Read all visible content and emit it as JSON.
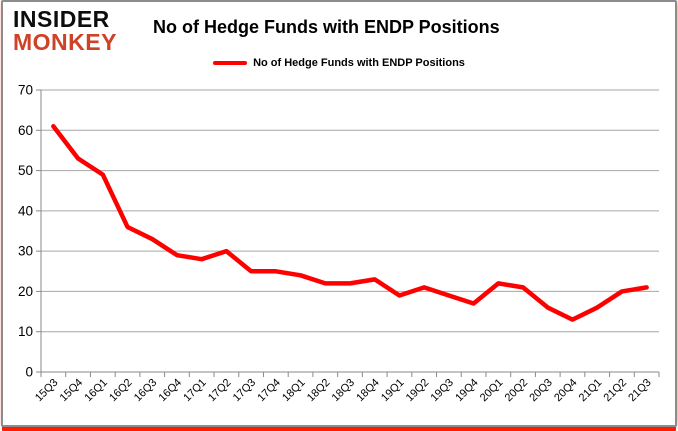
{
  "brand": {
    "line1": "INSIDER",
    "line2": "MONKEY",
    "accent_color": "#ce4227"
  },
  "header": {
    "title": "No of Hedge Funds with ENDP Positions"
  },
  "legend": {
    "label": "No of Hedge Funds with ENDP Positions",
    "swatch_color": "#ff0000"
  },
  "chart_data": {
    "type": "line",
    "title": "No of Hedge Funds with ENDP Positions",
    "xlabel": "",
    "ylabel": "",
    "categories": [
      "15Q3",
      "15Q4",
      "16Q1",
      "16Q2",
      "16Q3",
      "16Q4",
      "17Q1",
      "17Q2",
      "17Q3",
      "17Q4",
      "18Q1",
      "18Q2",
      "18Q3",
      "18Q4",
      "19Q1",
      "19Q2",
      "19Q3",
      "19Q4",
      "20Q1",
      "20Q2",
      "20Q3",
      "20Q4",
      "21Q1",
      "21Q2",
      "21Q3"
    ],
    "series": [
      {
        "name": "No of Hedge Funds with ENDP Positions",
        "color": "#ff0000",
        "values": [
          61,
          53,
          49,
          36,
          33,
          29,
          28,
          30,
          25,
          25,
          24,
          22,
          22,
          23,
          19,
          21,
          19,
          17,
          22,
          21,
          16,
          13,
          16,
          20,
          21
        ]
      }
    ],
    "ylim": [
      0,
      70
    ],
    "ytick_step": 10,
    "grid": "horizontal",
    "legend_position": "top-center",
    "grid_color": "#a6a6a6",
    "axis_color": "#898989",
    "tick_label_color": "#000000"
  }
}
